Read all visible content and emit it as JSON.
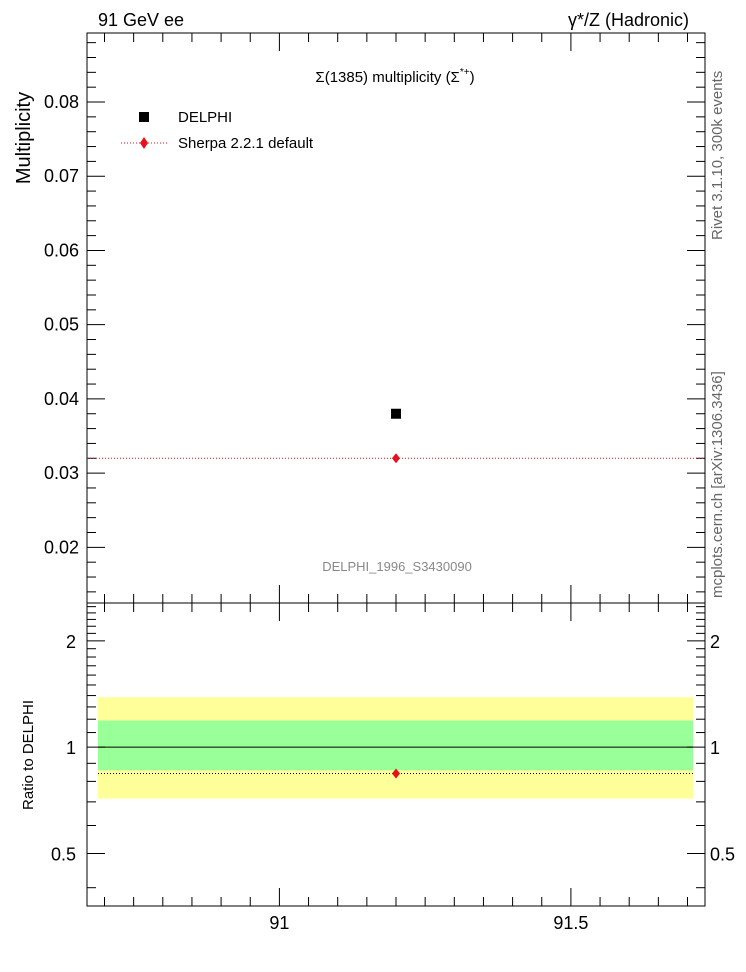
{
  "header": {
    "left": "91 GeV ee",
    "right": "γ*/Z (Hadronic)"
  },
  "side_labels": {
    "top": "Rivet 3.1.10,  300k events",
    "bottom": "mcplots.cern.ch [arXiv:1306.3436]"
  },
  "colors": {
    "data_marker": "#000000",
    "mc": "#e8101b",
    "band_outer": "#ffff99",
    "band_inner": "#99ff99",
    "analysis_text": "#888888"
  },
  "chart_data": [
    {
      "type": "scatter",
      "title": "Σ(1385) multiplicity (Σ*+)",
      "title_parts": {
        "main": "Σ(1385) multiplicity (Σ",
        "sup": "*+",
        "close": ")"
      },
      "ylabel": "Multiplicity",
      "xlim": [
        90.67,
        91.73
      ],
      "ylim": [
        0.0125,
        0.0893
      ],
      "yticks": [
        0.02,
        0.03,
        0.04,
        0.05,
        0.06,
        0.07,
        0.08
      ],
      "ytick_labels": [
        "0.02",
        "0.03",
        "0.04",
        "0.05",
        "0.06",
        "0.07",
        "0.08"
      ],
      "legend_placement": "top-left",
      "analysis_label": "DELPHI_1996_S3430090",
      "series": [
        {
          "name": "DELPHI",
          "x": [
            91.2
          ],
          "y": [
            0.038
          ],
          "style": "square"
        },
        {
          "name": "Sherpa 2.2.1 default",
          "x": [
            91.2
          ],
          "y": [
            0.032
          ],
          "style": "diamond-dotted"
        }
      ]
    },
    {
      "type": "scatter",
      "ylabel": "Ratio to DELPHI",
      "xlim": [
        90.67,
        91.73
      ],
      "ylim": [
        0.355,
        2.56
      ],
      "log_scale_y": true,
      "yticks": [
        0.5,
        1,
        2
      ],
      "ytick_labels": [
        "0.5",
        "1",
        "2"
      ],
      "xticks": [
        91,
        91.5
      ],
      "xtick_labels": [
        "91",
        "91.5"
      ],
      "reference_line": 1.0,
      "bands": {
        "inner": [
          0.86,
          1.19
        ],
        "outer": [
          0.715,
          1.385
        ]
      },
      "series": [
        {
          "name": "Sherpa 2.2.1 default",
          "x": [
            91.2
          ],
          "y": [
            0.842
          ]
        }
      ]
    }
  ]
}
